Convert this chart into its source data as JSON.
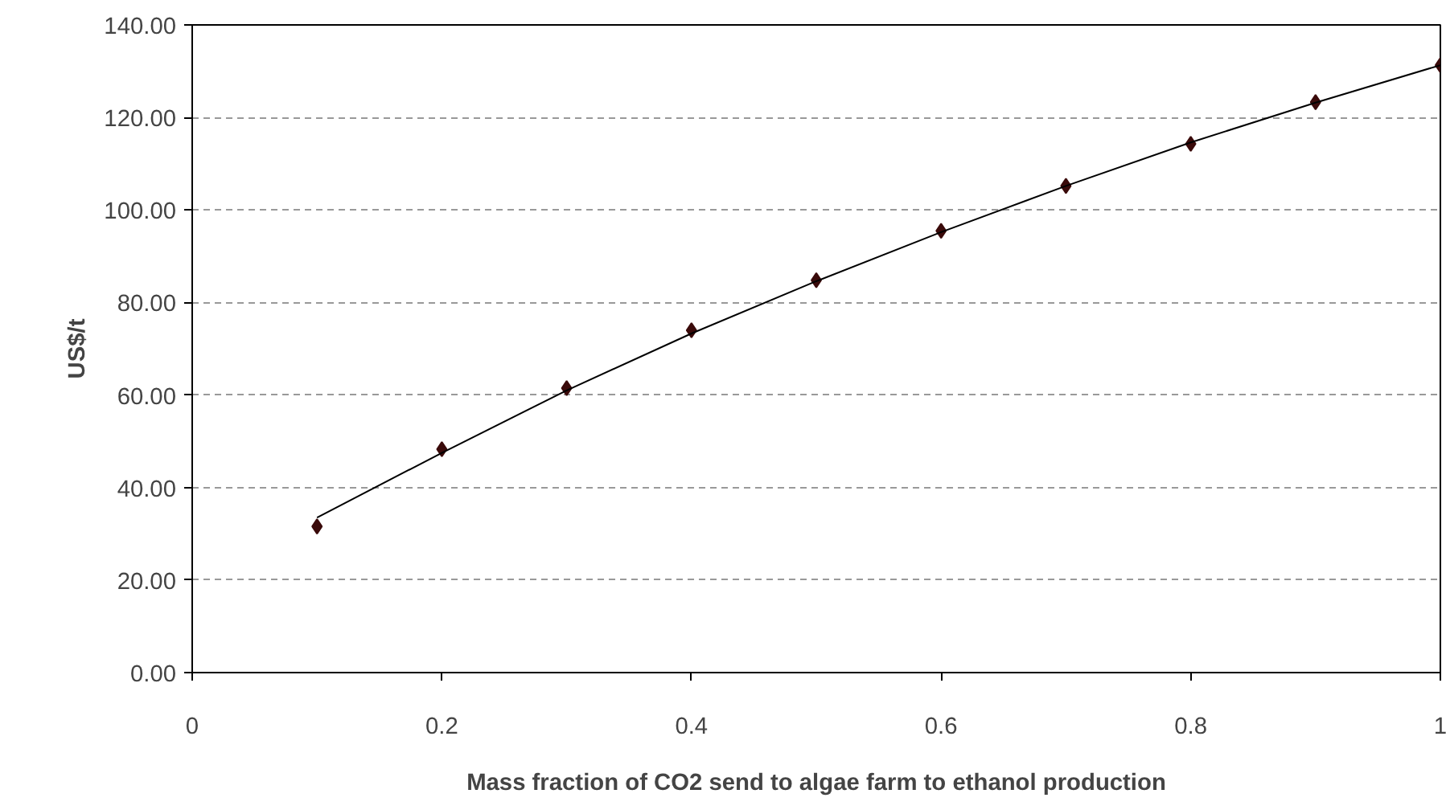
{
  "chart_data": {
    "type": "scatter",
    "xlabel": "Mass fraction of CO2 send to algae farm to ethanol production",
    "ylabel": "US$/t",
    "x": [
      0.1,
      0.2,
      0.3,
      0.4,
      0.5,
      0.6,
      0.7,
      0.8,
      0.9,
      1.0
    ],
    "series": [
      {
        "color": "#3a0a0a",
        "values": [
          31.6,
          48.3,
          61.5,
          74.0,
          84.8,
          95.5,
          105.2,
          114.3,
          123.3,
          131.3
        ]
      },
      {
        "type": "line",
        "color": "#000000",
        "x": [
          0.1,
          0.2,
          0.3,
          0.4,
          0.5,
          0.6,
          0.7,
          0.8,
          0.9,
          1.0
        ],
        "values": [
          33.5,
          47.5,
          61.0,
          73.3,
          84.6,
          95.2,
          105.2,
          114.6,
          123.2,
          131.3
        ],
        "marker": "none"
      }
    ],
    "marker": "diamond",
    "xlim": [
      0,
      1
    ],
    "ylim": [
      0,
      140
    ],
    "xticks": [
      0,
      0.2,
      0.4,
      0.6,
      0.8,
      1
    ],
    "yticks": [
      {
        "value": 0,
        "label": "0.00"
      },
      {
        "value": 20,
        "label": "20.00"
      },
      {
        "value": 40,
        "label": "40.00"
      },
      {
        "value": 60,
        "label": "60.00"
      },
      {
        "value": 80,
        "label": "80.00"
      },
      {
        "value": 100,
        "label": "100.00"
      },
      {
        "value": 120,
        "label": "120.00"
      },
      {
        "value": 140,
        "label": "140.00"
      }
    ],
    "grid": "y"
  }
}
